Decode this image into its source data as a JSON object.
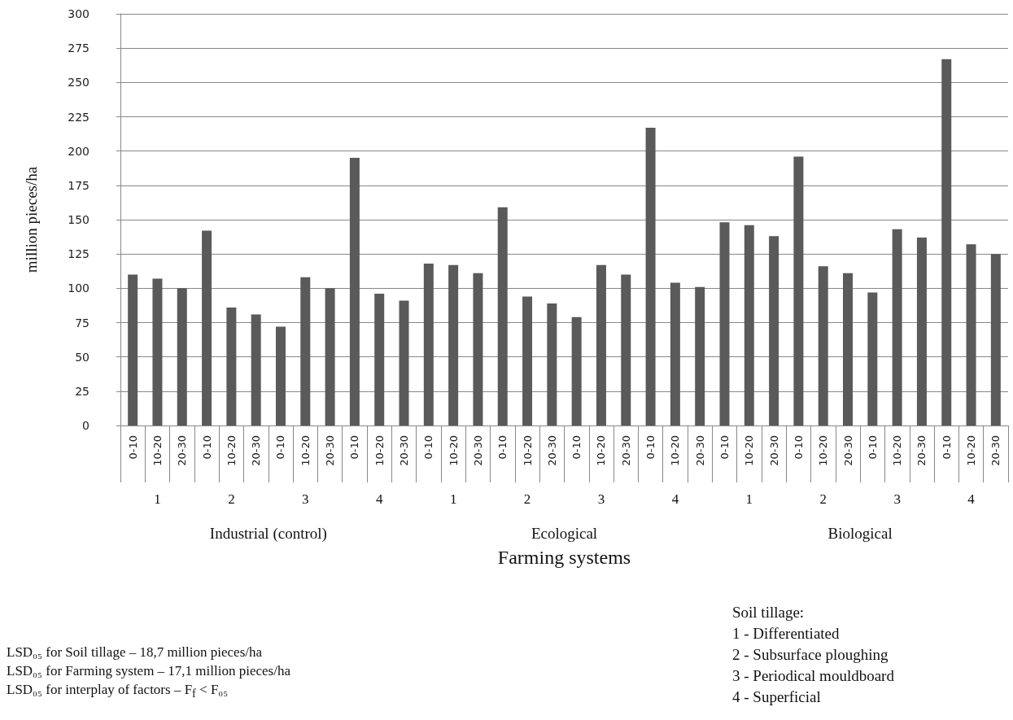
{
  "chart_data": {
    "type": "bar",
    "ylabel": "million pieces/ha",
    "xlabel": "Farming systems",
    "categories": [
      "0-10",
      "10-20",
      "20-30",
      "0-10",
      "10-20",
      "20-30",
      "0-10",
      "10-20",
      "20-30",
      "0-10",
      "10-20",
      "20-30",
      "0-10",
      "10-20",
      "20-30",
      "0-10",
      "10-20",
      "20-30",
      "0-10",
      "10-20",
      "20-30",
      "0-10",
      "10-20",
      "20-30",
      "0-10",
      "10-20",
      "20-30",
      "0-10",
      "10-20",
      "20-30",
      "0-10",
      "10-20",
      "20-30",
      "0-10",
      "10-20",
      "20-30"
    ],
    "values": [
      110,
      107,
      100,
      142,
      86,
      81,
      72,
      108,
      100,
      195,
      96,
      91,
      118,
      117,
      111,
      159,
      94,
      89,
      79,
      117,
      110,
      217,
      104,
      101,
      148,
      146,
      138,
      196,
      116,
      111,
      97,
      143,
      137,
      267,
      132,
      125
    ],
    "color": "#5a5a5a",
    "ylim": [
      0,
      300
    ],
    "yticks": [
      0,
      25,
      50,
      75,
      100,
      125,
      150,
      175,
      200,
      225,
      250,
      275,
      300
    ],
    "grid": "y",
    "annotations": [
      "1",
      "2",
      "3",
      "4",
      "1",
      "2",
      "3",
      "4",
      "1",
      "2",
      "3",
      "4",
      "Industrial (control)",
      "Ecological",
      "Biological",
      "LSD₀₅ for Soil tillage – 18,7 million pieces/ha",
      "LSD₀₅ for Farming system – 17,1 million pieces/ha",
      "LSD₀₅ for interplay of factors – F$_{f}$ < F₀₅",
      "Soil tillage:",
      "1 - Differentiated",
      "2 - Subsurface ploughing",
      "3 - Periodical mouldboard",
      "4 - Superficial"
    ]
  }
}
